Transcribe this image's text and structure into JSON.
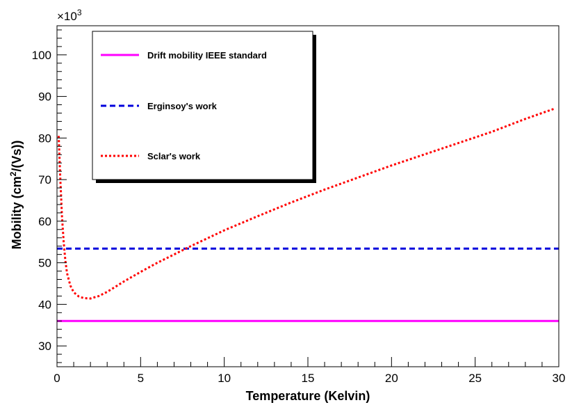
{
  "chart_data": {
    "type": "line",
    "title": "",
    "xlabel": "Temperature (Kelvin)",
    "ylabel_main": "Mobility (cm",
    "ylabel_sup": "2",
    "ylabel_tail": "/(Vs))",
    "y_multiplier_base": "×10",
    "y_multiplier_exp": "3",
    "xlim": [
      0,
      30
    ],
    "ylim": [
      25,
      107
    ],
    "x_ticks": [
      "0",
      "5",
      "10",
      "15",
      "20",
      "25",
      "30"
    ],
    "y_ticks": [
      "30",
      "40",
      "50",
      "60",
      "70",
      "80",
      "90",
      "100"
    ],
    "grid": false,
    "legend_position": "top-left",
    "series": [
      {
        "name": "Drift mobility IEEE standard",
        "color": "#ff00ff",
        "style": "solid",
        "x": [
          0,
          30
        ],
        "y": [
          36,
          36
        ]
      },
      {
        "name": "Erginsoy's work",
        "color": "#0000dd",
        "style": "dashed",
        "x": [
          0,
          30
        ],
        "y": [
          53.4,
          53.4
        ]
      },
      {
        "name": "Sclar's work",
        "color": "#ff0000",
        "style": "dotted",
        "x": [
          0.1,
          0.2,
          0.3,
          0.4,
          0.5,
          0.6,
          0.8,
          1.0,
          1.3,
          1.6,
          2.0,
          2.5,
          3.0,
          4.0,
          5.0,
          6.0,
          7.0,
          8.0,
          9.0,
          10.0,
          12.0,
          14.0,
          16.0,
          18.0,
          20.0,
          22.0,
          24.0,
          26.0,
          28.0,
          29.7
        ],
        "y": [
          80.5,
          70,
          61,
          55,
          50.5,
          47.5,
          44.5,
          42.9,
          41.9,
          41.5,
          41.4,
          42,
          43,
          45.5,
          47.8,
          50,
          52,
          54,
          55.9,
          57.8,
          61.2,
          64.5,
          67.6,
          70.5,
          73.4,
          76.1,
          78.8,
          81.5,
          84.6,
          87
        ]
      }
    ]
  }
}
